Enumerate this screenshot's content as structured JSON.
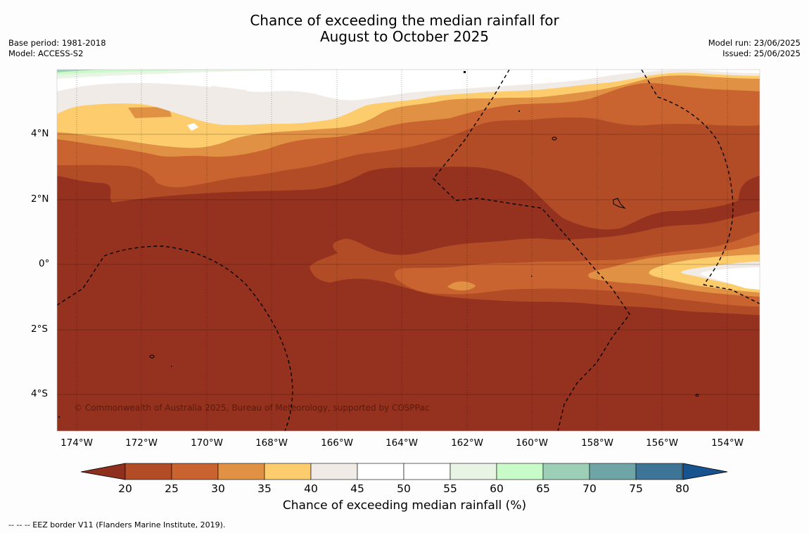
{
  "map": {
    "title_line1": "Chance of exceeding the median rainfall for",
    "title_line2": "August to October 2025",
    "base_period": "Base period: 1981-2018",
    "model": "Model: ACCESS-S2",
    "model_run": "Model run: 23/06/2025",
    "issued": "Issued: 25/06/2025",
    "copyright": "© Commonwealth of Australia 2025, Bureau of Meteorology, supported by COSPPac",
    "footer": "--  --  -- EEZ border V11 (Flanders Marine Institute, 2019).",
    "lat_labels": [
      "4°N",
      "2°N",
      "0°",
      "2°S",
      "4°S"
    ],
    "lon_labels": [
      "174°W",
      "172°W",
      "170°W",
      "168°W",
      "166°W",
      "164°W",
      "162°W",
      "160°W",
      "158°W",
      "156°W",
      "154°W"
    ],
    "base_color": "#95311f"
  },
  "legend": {
    "title": "Chance of exceeding median rainfall (%)",
    "labels": [
      "20",
      "25",
      "30",
      "35",
      "40",
      "45",
      "50",
      "55",
      "60",
      "65",
      "70",
      "75",
      "80"
    ],
    "colors": [
      "#8f2f1d",
      "#b24c27",
      "#c9632f",
      "#e09144",
      "#fdcc6c",
      "#f0ebe6",
      "#ffffff",
      "#ffffff",
      "#e8f5e4",
      "#c8fbc8",
      "#9dcfb6",
      "#6fa5a6",
      "#3e7597",
      "#17538e"
    ]
  }
}
